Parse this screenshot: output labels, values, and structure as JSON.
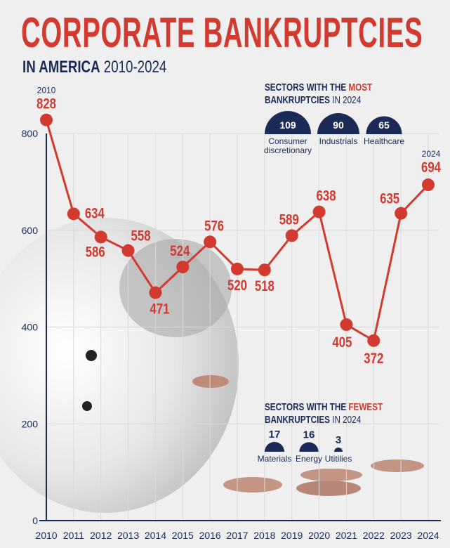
{
  "title": "CORPORATE BANKRUPTCIES",
  "subtitle": {
    "bold": "IN AMERICA",
    "range": "2010-2024"
  },
  "most": {
    "heading_a": "SECTORS WITH THE",
    "heading_highlight": "MOST",
    "heading_b": "BANKRUPTCIES",
    "heading_c": "IN 2024",
    "items": [
      {
        "label": "Consumer discretionary",
        "value": 109
      },
      {
        "label": "Industrials",
        "value": 90
      },
      {
        "label": "Healthcare",
        "value": 65
      }
    ]
  },
  "fewest": {
    "heading_a": "SECTORS WITH THE",
    "heading_highlight": "FEWEST",
    "heading_b": "BANKRUPTCIES",
    "heading_c": "IN 2024",
    "items": [
      {
        "label": "Materials",
        "value": 17
      },
      {
        "label": "Energy",
        "value": 16
      },
      {
        "label": "Utitilies",
        "value": 3
      }
    ]
  },
  "colors": {
    "line": "#d23a2f",
    "navy": "#1b2a57",
    "background": "#efefef"
  },
  "chart_data": {
    "type": "line",
    "x": [
      2010,
      2011,
      2012,
      2013,
      2014,
      2015,
      2016,
      2017,
      2018,
      2019,
      2020,
      2021,
      2022,
      2023,
      2024
    ],
    "values": [
      828,
      634,
      586,
      558,
      471,
      524,
      576,
      520,
      518,
      589,
      638,
      405,
      372,
      635,
      694
    ],
    "yticks": [
      0,
      200,
      400,
      600,
      800
    ],
    "ylim": [
      0,
      800
    ],
    "grid": true,
    "annotations": [
      {
        "x": 2010,
        "text": "2010"
      },
      {
        "x": 2024,
        "text": "2024"
      }
    ]
  }
}
